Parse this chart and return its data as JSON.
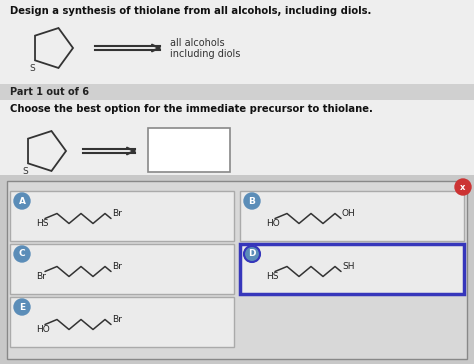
{
  "title": "Design a synthesis of thiolane from all alcohols, including diols.",
  "bg_color": "#c8c8c8",
  "top_bg": "#eeeeee",
  "part_bg": "#d0d0d0",
  "part_text": "Part 1 out of 6",
  "question_text": "Choose the best option for the immediate precursor to thiolane.",
  "arrow_text_line1": "all alcohols",
  "arrow_text_line2": "including diols",
  "option_A_left": "HS",
  "option_A_right": "Br",
  "option_B_left": "HO",
  "option_B_right": "OH",
  "option_C_left": "Br",
  "option_C_right": "Br",
  "option_D_left": "HS",
  "option_D_right": "SH",
  "option_E_left": "HO",
  "option_E_right": "Br",
  "circle_color": "#5b8db8",
  "circle_color_D": "#5b8db8",
  "selected_border": "#3636bb",
  "x_btn_color": "#cc3333",
  "opt_border": "#aaaaaa",
  "opt_bg": "#e4e4e4",
  "outer_box_bg": "#d8d8d8"
}
